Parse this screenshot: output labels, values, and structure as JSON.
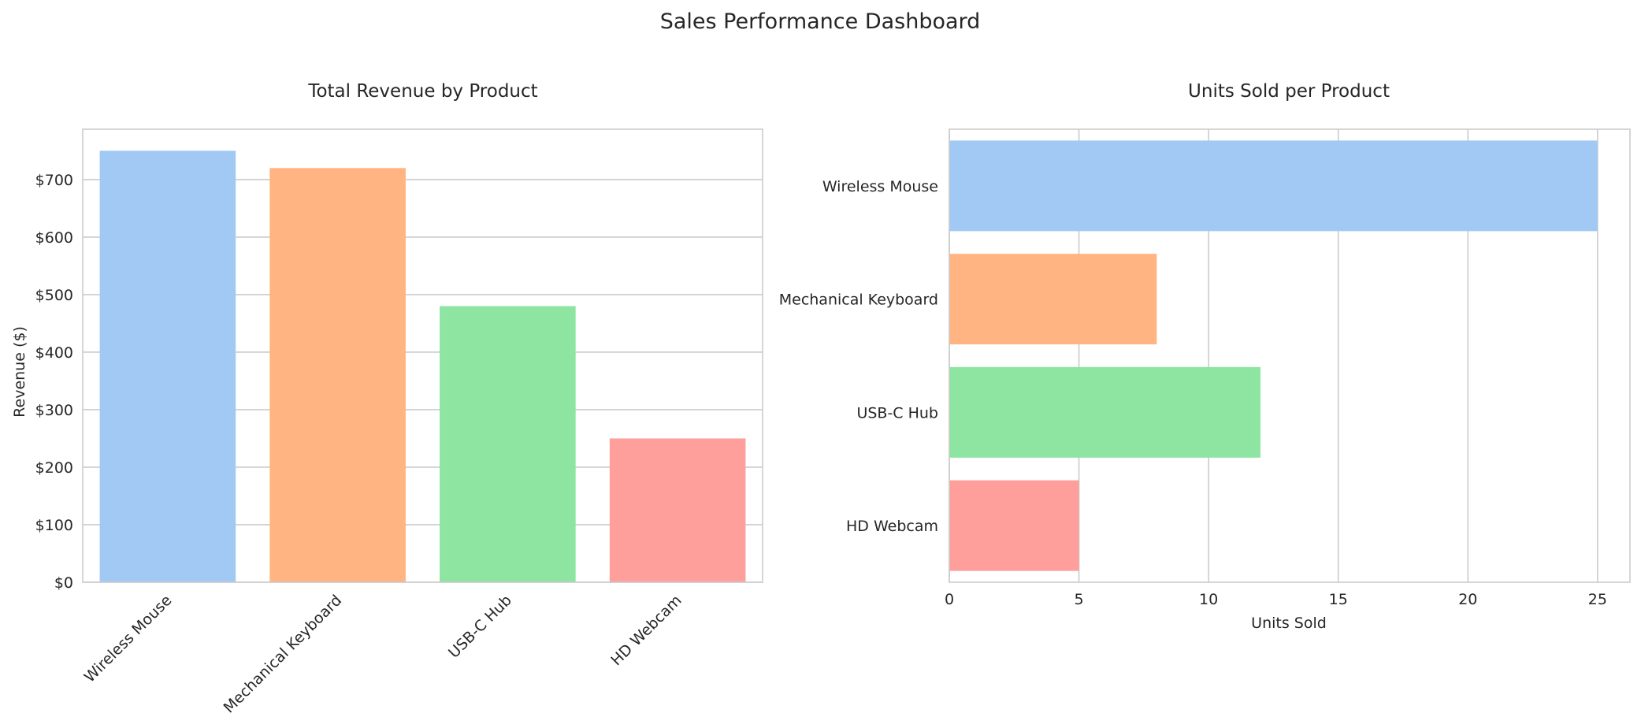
{
  "figure": {
    "title": "Sales Performance Dashboard"
  },
  "chart_data": [
    {
      "type": "bar",
      "orientation": "vertical",
      "title": "Total Revenue by Product",
      "xlabel": "",
      "ylabel": "Revenue ($)",
      "categories": [
        "Wireless Mouse",
        "Mechanical Keyboard",
        "USB-C Hub",
        "HD Webcam"
      ],
      "values": [
        750,
        720,
        480,
        250
      ],
      "colors": [
        "#a1c9f4",
        "#ffb482",
        "#8de5a1",
        "#ff9f9b"
      ],
      "ylim": [
        0,
        787.5
      ],
      "yticks": [
        0,
        100,
        200,
        300,
        400,
        500,
        600,
        700
      ],
      "ytick_labels": [
        "$0",
        "$100",
        "$200",
        "$300",
        "$400",
        "$500",
        "$600",
        "$700"
      ],
      "xtick_rotation": 45,
      "grid": "y"
    },
    {
      "type": "bar",
      "orientation": "horizontal",
      "title": "Units Sold per Product",
      "xlabel": "Units Sold",
      "ylabel": "",
      "categories": [
        "Wireless Mouse",
        "Mechanical Keyboard",
        "USB-C Hub",
        "HD Webcam"
      ],
      "values": [
        25,
        8,
        12,
        5
      ],
      "colors": [
        "#a1c9f4",
        "#ffb482",
        "#8de5a1",
        "#ff9f9b"
      ],
      "xlim": [
        0,
        26.25
      ],
      "xticks": [
        0,
        5,
        10,
        15,
        20,
        25
      ],
      "xtick_labels": [
        "0",
        "5",
        "10",
        "15",
        "20",
        "25"
      ],
      "grid": "x"
    }
  ]
}
